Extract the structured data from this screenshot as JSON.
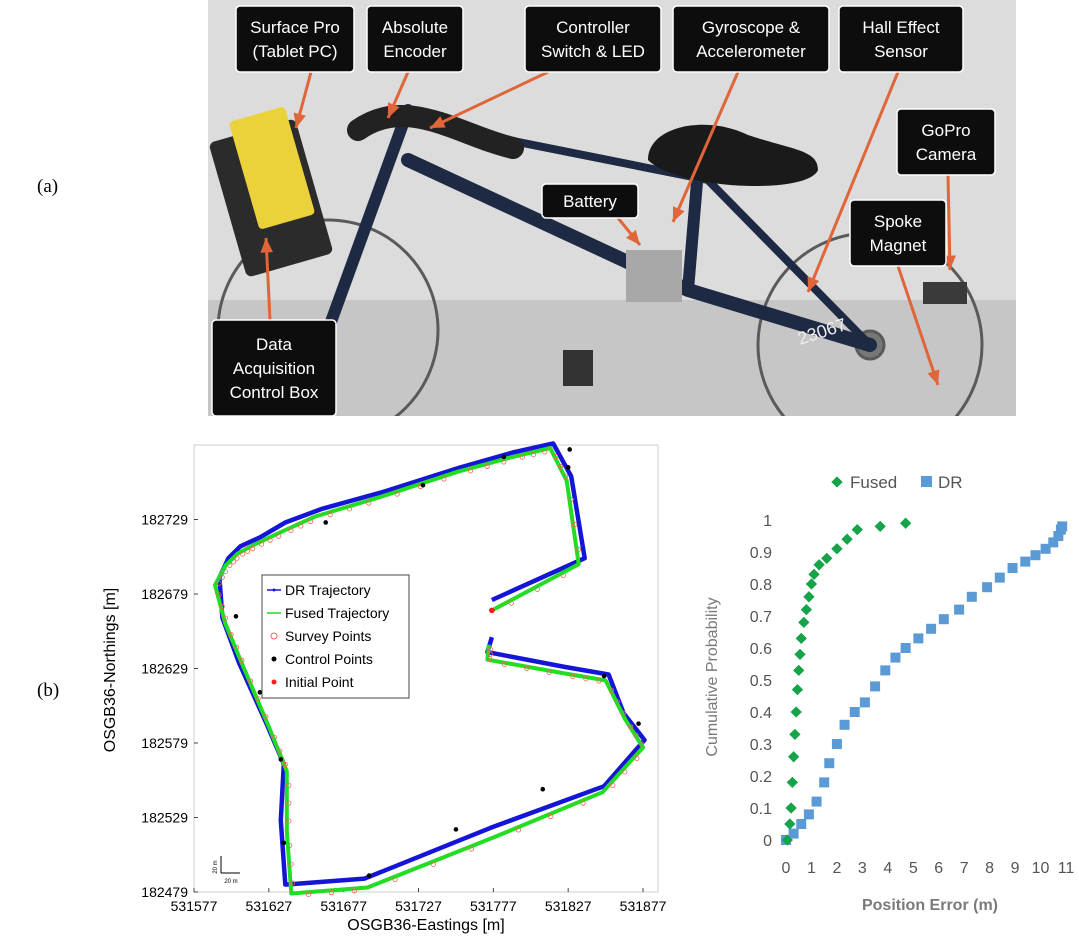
{
  "figure": {
    "panel_a_label": "(a)",
    "panel_b_label": "(b)"
  },
  "photo": {
    "callouts": [
      {
        "id": "surface",
        "lines": [
          "Surface Pro",
          "(Tablet PC)"
        ]
      },
      {
        "id": "encoder",
        "lines": [
          "Absolute",
          "Encoder"
        ]
      },
      {
        "id": "switch",
        "lines": [
          "Controller",
          "Switch & LED"
        ]
      },
      {
        "id": "gyro",
        "lines": [
          "Gyroscope &",
          "Accelerometer"
        ]
      },
      {
        "id": "hall",
        "lines": [
          "Hall Effect",
          "Sensor"
        ]
      },
      {
        "id": "gopro",
        "lines": [
          "GoPro",
          "Camera"
        ]
      },
      {
        "id": "battery",
        "lines": [
          "Battery"
        ]
      },
      {
        "id": "spoke",
        "lines": [
          "Spoke",
          "Magnet"
        ]
      },
      {
        "id": "daq",
        "lines": [
          "Data",
          "Acquisition",
          "Control Box"
        ]
      }
    ],
    "bike_number": "23067",
    "colors": {
      "callout_bg": "#0d0d0d",
      "arrow": "#e0663a",
      "frame": "#1e2a44",
      "wall": "#dcdcdc",
      "floor": "#c8c8c8"
    }
  },
  "chart_data": [
    {
      "type": "line",
      "xlabel": "OSGB36-Eastings [m]",
      "ylabel": "OSGB36-Northings [m]",
      "xlim": [
        531577,
        531887
      ],
      "ylim": [
        182479,
        182779
      ],
      "x_ticks": [
        "531577",
        "531627",
        "531677",
        "531727",
        "531777",
        "531827",
        "531877"
      ],
      "y_ticks": [
        "182729",
        "182679",
        "182629",
        "182579",
        "182529",
        "182479"
      ],
      "scale_bar": {
        "vertical_label": "20 m",
        "horizontal_label": "20 m"
      },
      "legend": [
        "DR Trajectory",
        "Fused Trajectory",
        "Survey Points",
        "Control Points",
        "Initial Point"
      ],
      "colors": {
        "dr": "#1515d8",
        "fused": "#22dd22",
        "survey": "#ee6655",
        "control": "#000000",
        "initial": "#ff1a1a"
      },
      "series": [
        {
          "name": "DR Trajectory",
          "x": [
            531776,
            531838,
            531829,
            531817,
            531790,
            531755,
            531705,
            531662,
            531638,
            531621,
            531608,
            531600,
            531594,
            531596,
            531607,
            531625,
            531637,
            531635,
            531638,
            531691,
            531775,
            531851,
            531878,
            531864,
            531854,
            531825,
            531773,
            531776
          ],
          "y": [
            182675,
            182703,
            182758,
            182780,
            182774,
            182764,
            182748,
            182736,
            182727,
            182717,
            182711,
            182703,
            182690,
            182663,
            182633,
            182593,
            182565,
            182527,
            182484,
            182488,
            182522,
            182550,
            182581,
            182599,
            182625,
            182630,
            182640,
            182650
          ]
        },
        {
          "name": "Fused Trajectory",
          "x": [
            531776,
            531834,
            531826,
            531815,
            531790,
            531753,
            531701,
            531658,
            531636,
            531617,
            531606,
            531598,
            531591,
            531598,
            531610,
            531627,
            531639,
            531639,
            531642,
            531693,
            531778,
            531850,
            531877,
            531865,
            531852,
            531823,
            531773,
            531774
          ],
          "y": [
            182668,
            182699,
            182755,
            182777,
            182771,
            182761,
            182744,
            182731,
            182721,
            182712,
            182706,
            182698,
            182685,
            182659,
            182630,
            182590,
            182560,
            182520,
            182478,
            182482,
            182516,
            182546,
            182576,
            182595,
            182621,
            182626,
            182635,
            182645
          ]
        },
        {
          "name": "Control Points",
          "x": [
            531827,
            531784,
            531730,
            531665,
            531605,
            531621,
            531635,
            531637,
            531694,
            531752,
            531810,
            531874,
            531851,
            531828
          ],
          "y": [
            182764,
            182771,
            182752,
            182727,
            182664,
            182613,
            182568,
            182512,
            182490,
            182521,
            182548,
            182592,
            182624,
            182776
          ]
        },
        {
          "name": "Initial Point",
          "x": [
            531776
          ],
          "y": [
            182668
          ]
        }
      ]
    },
    {
      "type": "scatter",
      "xlabel": "Position Error (m)",
      "ylabel": "Cumulative Probability",
      "xlim": [
        0,
        11
      ],
      "ylim": [
        0,
        1
      ],
      "x_ticks": [
        "0",
        "1",
        "2",
        "3",
        "4",
        "5",
        "6",
        "7",
        "8",
        "9",
        "10",
        "11"
      ],
      "y_ticks": [
        "0",
        "0.1",
        "0.2",
        "0.3",
        "0.4",
        "0.5",
        "0.6",
        "0.7",
        "0.8",
        "0.9",
        "1"
      ],
      "legend_position": "top",
      "colors": {
        "fused": "#16a34a",
        "dr": "#5b9bd5"
      },
      "series": [
        {
          "name": "Fused",
          "x": [
            0.05,
            0.15,
            0.2,
            0.25,
            0.3,
            0.35,
            0.4,
            0.45,
            0.5,
            0.55,
            0.6,
            0.7,
            0.8,
            0.9,
            1.0,
            1.1,
            1.3,
            1.6,
            2.0,
            2.4,
            2.8,
            3.7,
            4.7
          ],
          "y": [
            0.0,
            0.05,
            0.1,
            0.18,
            0.26,
            0.33,
            0.4,
            0.47,
            0.53,
            0.58,
            0.63,
            0.68,
            0.72,
            0.76,
            0.8,
            0.83,
            0.86,
            0.88,
            0.91,
            0.94,
            0.97,
            0.98,
            0.99
          ]
        },
        {
          "name": "DR",
          "x": [
            0.0,
            0.3,
            0.6,
            0.9,
            1.2,
            1.5,
            1.7,
            2.0,
            2.3,
            2.7,
            3.1,
            3.5,
            3.9,
            4.3,
            4.7,
            5.2,
            5.7,
            6.2,
            6.8,
            7.3,
            7.9,
            8.4,
            8.9,
            9.4,
            9.8,
            10.2,
            10.5,
            10.7,
            10.8,
            10.85
          ],
          "y": [
            0.0,
            0.02,
            0.05,
            0.08,
            0.12,
            0.18,
            0.24,
            0.3,
            0.36,
            0.4,
            0.43,
            0.48,
            0.53,
            0.57,
            0.6,
            0.63,
            0.66,
            0.69,
            0.72,
            0.76,
            0.79,
            0.82,
            0.85,
            0.87,
            0.89,
            0.91,
            0.93,
            0.95,
            0.97,
            0.98
          ]
        }
      ]
    }
  ]
}
